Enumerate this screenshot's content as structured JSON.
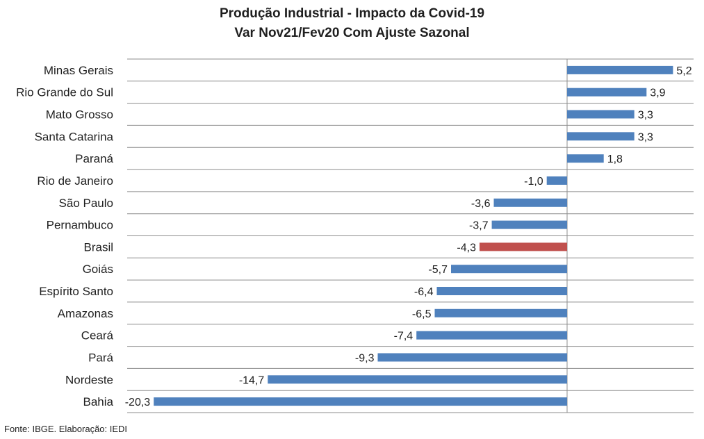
{
  "chart_data": {
    "type": "bar",
    "orientation": "horizontal",
    "title": "Produção Industrial - Impacto da Covid-19",
    "subtitle": "Var Nov21/Fev20 Com Ajuste Sazonal",
    "categories": [
      "Minas Gerais",
      "Rio Grande do Sul",
      "Mato Grosso",
      "Santa Catarina",
      "Paraná",
      "Rio de Janeiro",
      "São Paulo",
      "Pernambuco",
      "Brasil",
      "Goiás",
      "Espírito Santo",
      "Amazonas",
      "Ceará",
      "Pará",
      "Nordeste",
      "Bahia"
    ],
    "values": [
      5.2,
      3.9,
      3.3,
      3.3,
      1.8,
      -1.0,
      -3.6,
      -3.7,
      -4.3,
      -5.7,
      -6.4,
      -6.5,
      -7.4,
      -9.3,
      -14.7,
      -20.3
    ],
    "value_labels": [
      "5,2",
      "3,9",
      "3,3",
      "3,3",
      "1,8",
      "-1,0",
      "-3,6",
      "-3,7",
      "-4,3",
      "-5,7",
      "-6,4",
      "-6,5",
      "-7,4",
      "-9,3",
      "-14,7",
      "-20,3"
    ],
    "highlight_category": "Brasil",
    "xlim": [
      -22.0,
      6.0
    ],
    "grid": true,
    "legend": "none",
    "colors": {
      "bar": "#4f81bd",
      "highlight": "#c0504d",
      "grid": "#8c8c8c",
      "axis": "#8c8c8c"
    }
  },
  "footer": {
    "source": "Fonte: IBGE. Elaboração: IEDI"
  }
}
